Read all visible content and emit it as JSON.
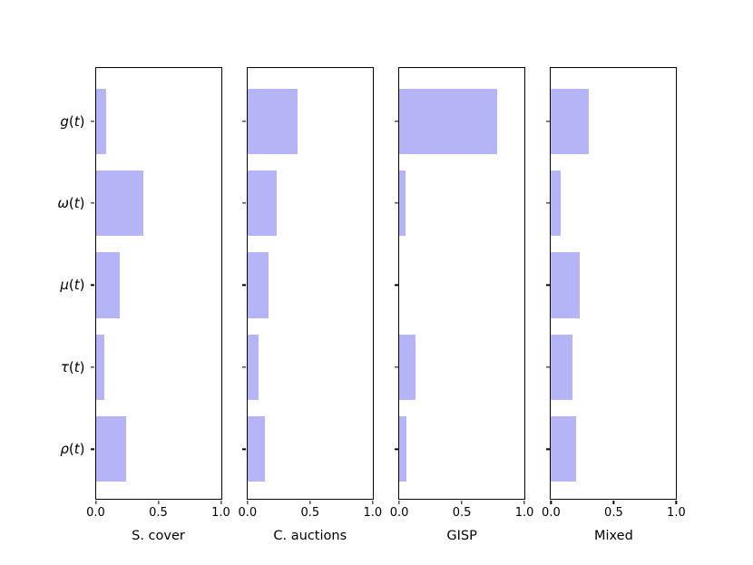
{
  "chart_data": {
    "type": "bar",
    "orientation": "horizontal",
    "title": "",
    "categories": [
      "g(t)",
      "ω(t)",
      "μ(t)",
      "τ(t)",
      "ρ(t)"
    ],
    "xtick_labels": [
      "0.0",
      "0.5",
      "1.0"
    ],
    "xlim": [
      0.0,
      1.0
    ],
    "grid": false,
    "legend": false,
    "bar_color": "#b4b4f7",
    "axis_color": "#000000",
    "subplots": [
      {
        "xlabel": "S. cover",
        "values": [
          0.08,
          0.38,
          0.19,
          0.07,
          0.24
        ]
      },
      {
        "xlabel": "C. auctions",
        "values": [
          0.4,
          0.23,
          0.17,
          0.09,
          0.14
        ]
      },
      {
        "xlabel": "GISP",
        "values": [
          0.78,
          0.05,
          0.0,
          0.13,
          0.06
        ]
      },
      {
        "xlabel": "Mixed",
        "values": [
          0.3,
          0.08,
          0.23,
          0.17,
          0.2
        ]
      }
    ]
  }
}
